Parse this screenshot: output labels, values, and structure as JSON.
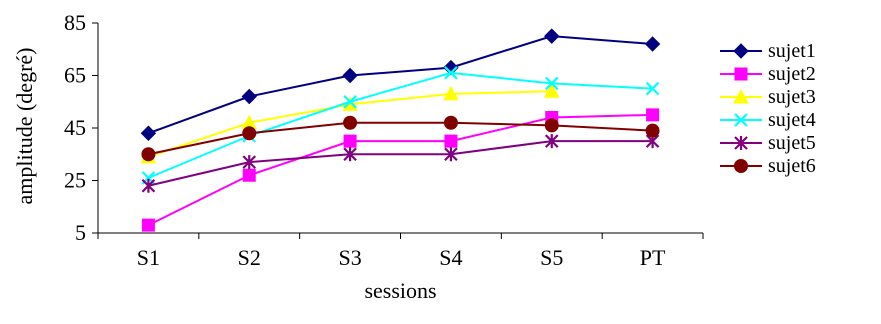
{
  "chart_data": {
    "type": "line",
    "categories": [
      "S1",
      "S2",
      "S3",
      "S4",
      "S5",
      "PT"
    ],
    "xlabel": "sessions",
    "ylabel": "amplitude (degré)",
    "ylim": [
      5,
      85
    ],
    "yticks": [
      5,
      25,
      45,
      65,
      85
    ],
    "grid": false,
    "legend": "right",
    "series": [
      {
        "name": "sujet1",
        "color": "#000080",
        "marker": "diamond",
        "values": [
          43,
          57,
          65,
          68,
          80,
          77
        ]
      },
      {
        "name": "sujet2",
        "color": "#FF00FF",
        "marker": "square",
        "values": [
          8,
          27,
          40,
          40,
          49,
          50
        ]
      },
      {
        "name": "sujet3",
        "color": "#FFFF00",
        "marker": "triangle",
        "values": [
          34,
          47,
          54,
          58,
          59,
          null
        ]
      },
      {
        "name": "sujet4",
        "color": "#00FFFF",
        "marker": "x",
        "values": [
          26,
          42,
          55,
          66,
          62,
          60
        ]
      },
      {
        "name": "sujet5",
        "color": "#800080",
        "marker": "star",
        "values": [
          23,
          32,
          35,
          35,
          40,
          40
        ]
      },
      {
        "name": "sujet6",
        "color": "#800000",
        "marker": "circle",
        "values": [
          35,
          43,
          47,
          47,
          46,
          44
        ]
      }
    ]
  }
}
